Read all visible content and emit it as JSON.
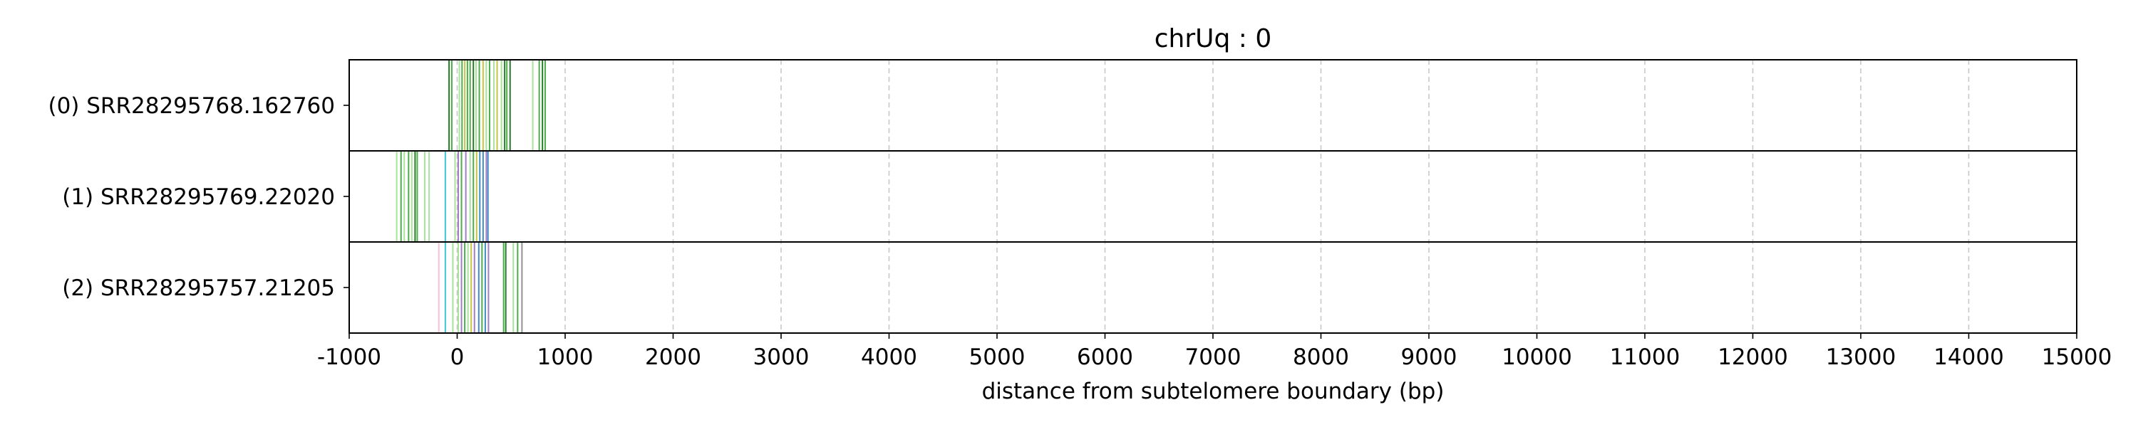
{
  "chart_data": {
    "type": "tracks",
    "title": "chrUq : 0",
    "xlabel": "distance from subtelomere boundary (bp)",
    "xlim": [
      -1000,
      15000
    ],
    "xticks": [
      -1000,
      0,
      1000,
      2000,
      3000,
      4000,
      5000,
      6000,
      7000,
      8000,
      9000,
      10000,
      11000,
      12000,
      13000,
      14000,
      15000
    ],
    "xtick_labels": [
      "-1000",
      "0",
      "1000",
      "2000",
      "3000",
      "4000",
      "5000",
      "6000",
      "7000",
      "8000",
      "9000",
      "10000",
      "11000",
      "12000",
      "13000",
      "14000",
      "15000"
    ],
    "grid": "vertical dashed",
    "colors": {
      "green": "#2ca02c",
      "dark_green": "#006400",
      "light_green": "#98df8a",
      "olive": "#bcbd22",
      "purple": "#9467bd",
      "blue": "#1f77b4",
      "cyan": "#17becf",
      "pink": "#f7b6d2",
      "gray": "#7f7f7f"
    },
    "tracks": [
      {
        "label": "(0) SRR28295768.162760",
        "start": -80,
        "end": 840,
        "marks": [
          {
            "x": -75,
            "c": "dark_green"
          },
          {
            "x": -50,
            "c": "green"
          },
          {
            "x": 20,
            "c": "light_green"
          },
          {
            "x": 45,
            "c": "green"
          },
          {
            "x": 70,
            "c": "olive"
          },
          {
            "x": 95,
            "c": "green"
          },
          {
            "x": 120,
            "c": "green"
          },
          {
            "x": 150,
            "c": "dark_green"
          },
          {
            "x": 175,
            "c": "light_green"
          },
          {
            "x": 205,
            "c": "green"
          },
          {
            "x": 240,
            "c": "olive"
          },
          {
            "x": 270,
            "c": "light_green"
          },
          {
            "x": 300,
            "c": "green"
          },
          {
            "x": 340,
            "c": "light_green"
          },
          {
            "x": 370,
            "c": "olive"
          },
          {
            "x": 410,
            "c": "light_green"
          },
          {
            "x": 440,
            "c": "dark_green"
          },
          {
            "x": 460,
            "c": "green"
          },
          {
            "x": 490,
            "c": "dark_green"
          },
          {
            "x": 700,
            "c": "light_green"
          },
          {
            "x": 760,
            "c": "green"
          },
          {
            "x": 790,
            "c": "dark_green"
          },
          {
            "x": 815,
            "c": "green"
          }
        ]
      },
      {
        "label": "(1) SRR28295769.22020",
        "start": -560,
        "end": 290,
        "marks": [
          {
            "x": -560,
            "c": "light_green"
          },
          {
            "x": -520,
            "c": "green"
          },
          {
            "x": -490,
            "c": "light_green"
          },
          {
            "x": -450,
            "c": "green"
          },
          {
            "x": -420,
            "c": "light_green"
          },
          {
            "x": -390,
            "c": "dark_green"
          },
          {
            "x": -370,
            "c": "green"
          },
          {
            "x": -300,
            "c": "light_green"
          },
          {
            "x": -260,
            "c": "light_green"
          },
          {
            "x": -110,
            "c": "cyan"
          },
          {
            "x": -20,
            "c": "light_green"
          },
          {
            "x": 10,
            "c": "purple"
          },
          {
            "x": 40,
            "c": "green"
          },
          {
            "x": 80,
            "c": "purple"
          },
          {
            "x": 120,
            "c": "light_green"
          },
          {
            "x": 150,
            "c": "green"
          },
          {
            "x": 180,
            "c": "olive"
          },
          {
            "x": 210,
            "c": "blue"
          },
          {
            "x": 240,
            "c": "blue"
          },
          {
            "x": 270,
            "c": "purple"
          },
          {
            "x": 285,
            "c": "blue"
          }
        ]
      },
      {
        "label": "(2) SRR28295757.21205",
        "start": -170,
        "end": 610,
        "marks": [
          {
            "x": -170,
            "c": "pink"
          },
          {
            "x": -110,
            "c": "cyan"
          },
          {
            "x": -40,
            "c": "light_green"
          },
          {
            "x": 10,
            "c": "light_green"
          },
          {
            "x": 40,
            "c": "purple"
          },
          {
            "x": 70,
            "c": "green"
          },
          {
            "x": 100,
            "c": "light_green"
          },
          {
            "x": 130,
            "c": "olive"
          },
          {
            "x": 160,
            "c": "purple"
          },
          {
            "x": 200,
            "c": "blue"
          },
          {
            "x": 230,
            "c": "green"
          },
          {
            "x": 260,
            "c": "blue"
          },
          {
            "x": 290,
            "c": "purple"
          },
          {
            "x": 430,
            "c": "green"
          },
          {
            "x": 450,
            "c": "dark_green"
          },
          {
            "x": 520,
            "c": "light_green"
          },
          {
            "x": 560,
            "c": "green"
          },
          {
            "x": 600,
            "c": "gray"
          }
        ]
      }
    ]
  }
}
